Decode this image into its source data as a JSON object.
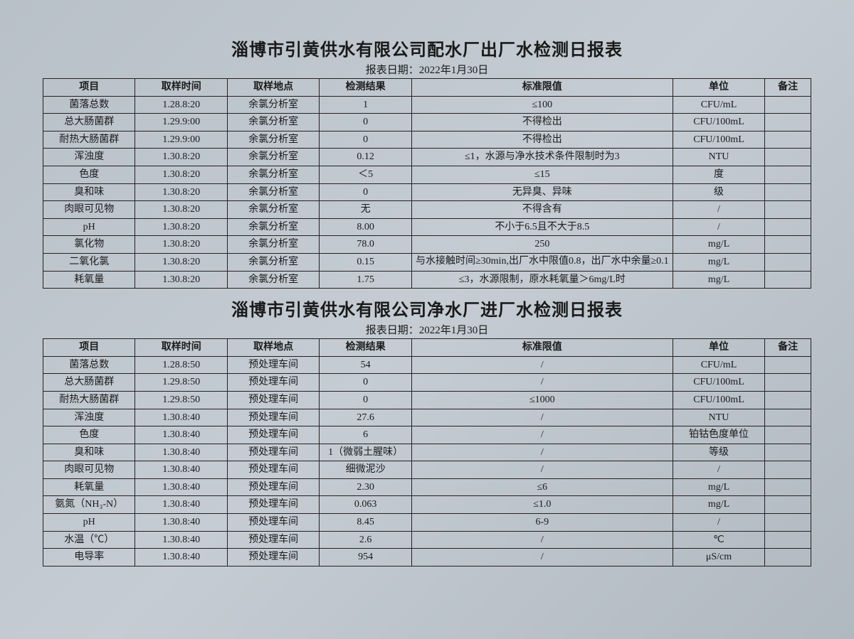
{
  "report1": {
    "title": "淄博市引黄供水有限公司配水厂出厂水检测日报表",
    "date_label": "报表日期：2022年1月30日",
    "columns": [
      "项目",
      "取样时间",
      "取样地点",
      "检测结果",
      "标准限值",
      "单位",
      "备注"
    ],
    "rows": [
      {
        "item": "菌落总数",
        "time": "1.28.8:20",
        "loc": "余氯分析室",
        "res": "1",
        "std": "≤100",
        "unit": "CFU/mL",
        "note": ""
      },
      {
        "item": "总大肠菌群",
        "time": "1.29.9:00",
        "loc": "余氯分析室",
        "res": "0",
        "std": "不得检出",
        "unit": "CFU/100mL",
        "note": ""
      },
      {
        "item": "耐热大肠菌群",
        "time": "1.29.9:00",
        "loc": "余氯分析室",
        "res": "0",
        "std": "不得检出",
        "unit": "CFU/100mL",
        "note": ""
      },
      {
        "item": "浑浊度",
        "time": "1.30.8:20",
        "loc": "余氯分析室",
        "res": "0.12",
        "std": "≤1，水源与净水技术条件限制时为3",
        "unit": "NTU",
        "note": ""
      },
      {
        "item": "色度",
        "time": "1.30.8:20",
        "loc": "余氯分析室",
        "res": "＜5",
        "std": "≤15",
        "unit": "度",
        "note": ""
      },
      {
        "item": "臭和味",
        "time": "1.30.8:20",
        "loc": "余氯分析室",
        "res": "0",
        "std": "无异臭、异味",
        "unit": "级",
        "note": ""
      },
      {
        "item": "肉眼可见物",
        "time": "1.30.8:20",
        "loc": "余氯分析室",
        "res": "无",
        "std": "不得含有",
        "unit": "/",
        "note": ""
      },
      {
        "item": "pH",
        "time": "1.30.8:20",
        "loc": "余氯分析室",
        "res": "8.00",
        "std": "不小于6.5且不大于8.5",
        "unit": "/",
        "note": ""
      },
      {
        "item": "氯化物",
        "time": "1.30.8:20",
        "loc": "余氯分析室",
        "res": "78.0",
        "std": "250",
        "unit": "mg/L",
        "note": ""
      },
      {
        "item": "二氧化氯",
        "time": "1.30.8:20",
        "loc": "余氯分析室",
        "res": "0.15",
        "std": "与水接触时间≥30min,出厂水中限值0.8，出厂水中余量≥0.1",
        "unit": "mg/L",
        "note": "",
        "multiline": true
      },
      {
        "item": "耗氧量",
        "time": "1.30.8:20",
        "loc": "余氯分析室",
        "res": "1.75",
        "std": "≤3，水源限制，原水耗氧量＞6mg/L时",
        "unit": "mg/L",
        "note": ""
      }
    ]
  },
  "report2": {
    "title": "淄博市引黄供水有限公司净水厂进厂水检测日报表",
    "date_label": "报表日期：2022年1月30日",
    "columns": [
      "项目",
      "取样时间",
      "取样地点",
      "检测结果",
      "标准限值",
      "单位",
      "备注"
    ],
    "rows": [
      {
        "item": "菌落总数",
        "time": "1.28.8:50",
        "loc": "预处理车间",
        "res": "54",
        "std": "/",
        "unit": "CFU/mL",
        "note": ""
      },
      {
        "item": "总大肠菌群",
        "time": "1.29.8:50",
        "loc": "预处理车间",
        "res": "0",
        "std": "/",
        "unit": "CFU/100mL",
        "note": ""
      },
      {
        "item": "耐热大肠菌群",
        "time": "1.29.8:50",
        "loc": "预处理车间",
        "res": "0",
        "std": "≤1000",
        "unit": "CFU/100mL",
        "note": ""
      },
      {
        "item": "浑浊度",
        "time": "1.30.8:40",
        "loc": "预处理车间",
        "res": "27.6",
        "std": "/",
        "unit": "NTU",
        "note": ""
      },
      {
        "item": "色度",
        "time": "1.30.8:40",
        "loc": "预处理车间",
        "res": "6",
        "std": "/",
        "unit": "铂钴色度单位",
        "note": ""
      },
      {
        "item": "臭和味",
        "time": "1.30.8:40",
        "loc": "预处理车间",
        "res": "1（微弱土腥味）",
        "std": "/",
        "unit": "等级",
        "note": ""
      },
      {
        "item": "肉眼可见物",
        "time": "1.30.8:40",
        "loc": "预处理车间",
        "res": "细微泥沙",
        "std": "/",
        "unit": "/",
        "note": ""
      },
      {
        "item": "耗氧量",
        "time": "1.30.8:40",
        "loc": "预处理车间",
        "res": "2.30",
        "std": "≤6",
        "unit": "mg/L",
        "note": ""
      },
      {
        "item": "氨氮（NH₃-N）",
        "time": "1.30.8:40",
        "loc": "预处理车间",
        "res": "0.063",
        "std": "≤1.0",
        "unit": "mg/L",
        "note": ""
      },
      {
        "item": "pH",
        "time": "1.30.8:40",
        "loc": "预处理车间",
        "res": "8.45",
        "std": "6-9",
        "unit": "/",
        "note": ""
      },
      {
        "item": "水温（℃）",
        "time": "1.30.8:40",
        "loc": "预处理车间",
        "res": "2.6",
        "std": "/",
        "unit": "℃",
        "note": ""
      },
      {
        "item": "电导率",
        "time": "1.30.8:40",
        "loc": "预处理车间",
        "res": "954",
        "std": "/",
        "unit": "μS/cm",
        "note": ""
      }
    ]
  }
}
